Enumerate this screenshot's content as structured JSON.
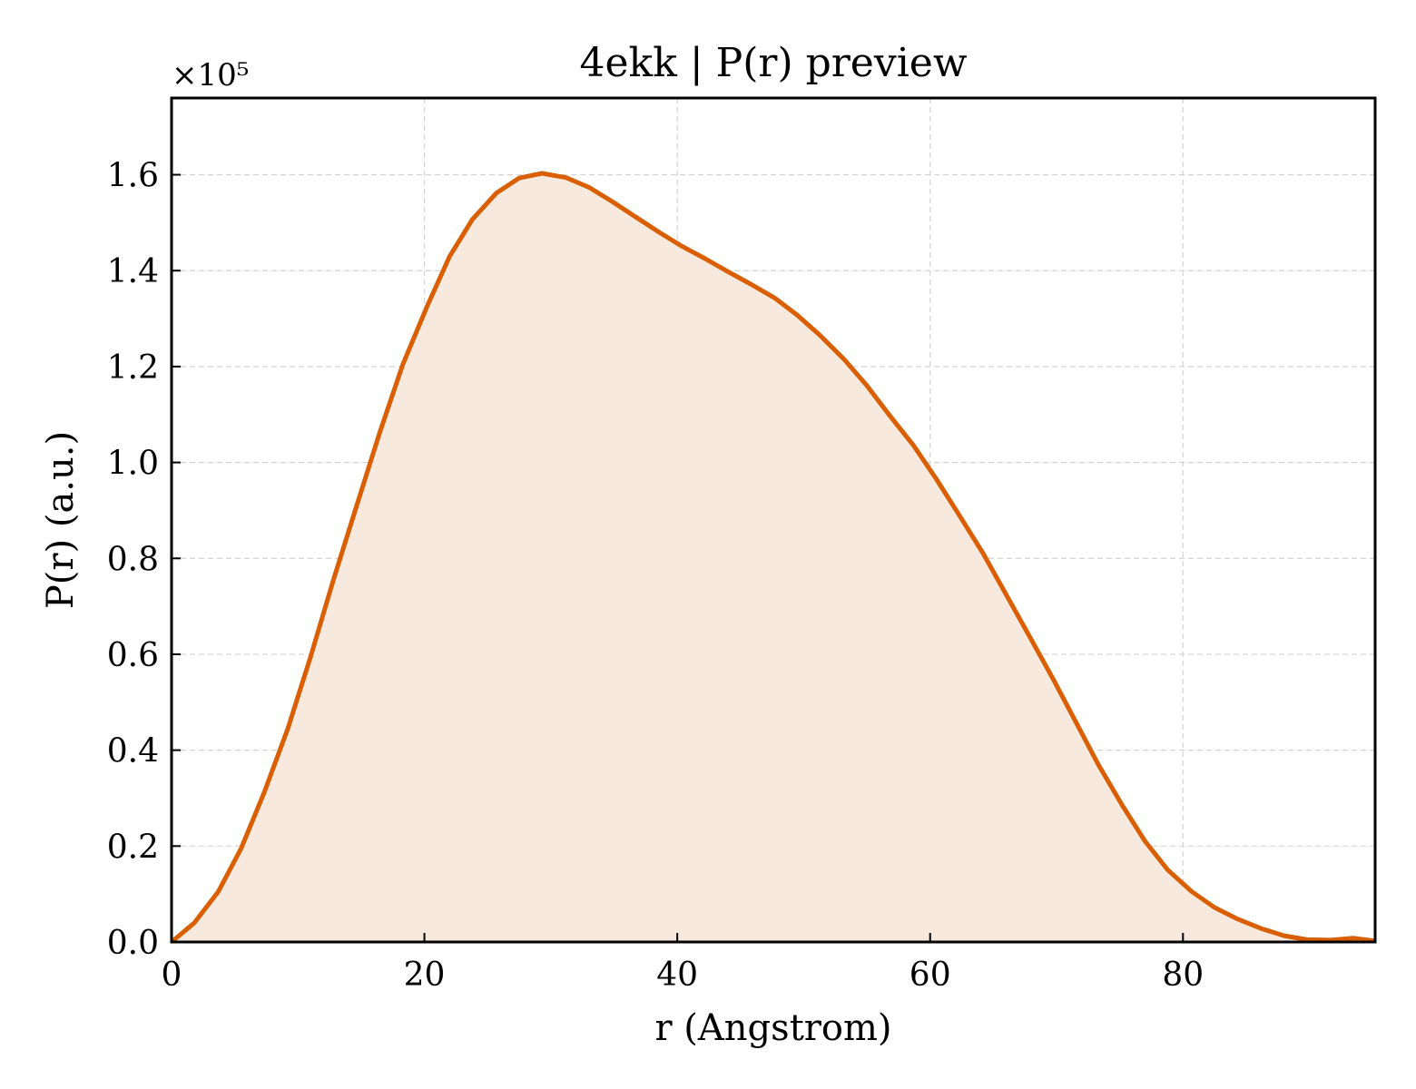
{
  "chart_data": {
    "type": "area",
    "title": "4ekk | P(r) preview",
    "xlabel": "r (Angstrom)",
    "ylabel": "P(r) (a.u.)",
    "y_multiplier_label": "×10⁵",
    "y_multiplier": 100000,
    "xlim": [
      0,
      95.2
    ],
    "ylim": [
      0,
      1.76
    ],
    "x_ticks": [
      0,
      20,
      40,
      60,
      80
    ],
    "x_tick_labels": [
      "0",
      "20",
      "40",
      "60",
      "80"
    ],
    "y_ticks": [
      0,
      0.2,
      0.4,
      0.6,
      0.8,
      1.0,
      1.2,
      1.4,
      1.6
    ],
    "y_tick_labels": [
      "0.0",
      "0.2",
      "0.4",
      "0.6",
      "0.8",
      "1.0",
      "1.2",
      "1.4",
      "1.6"
    ],
    "grid": true,
    "line_color": "#d95f02",
    "fill_color": "#f8e9de",
    "series": [
      {
        "x": [
          0,
          1.8,
          3.7,
          5.5,
          7.3,
          9.2,
          11.0,
          12.8,
          14.7,
          16.5,
          18.3,
          20.2,
          22.0,
          23.8,
          25.7,
          27.5,
          29.3,
          31.2,
          33.0,
          34.8,
          36.7,
          38.5,
          40.3,
          42.2,
          44.0,
          45.8,
          47.7,
          49.5,
          51.3,
          53.2,
          55.0,
          56.8,
          58.7,
          60.5,
          62.3,
          64.2,
          66.0,
          67.8,
          69.7,
          71.5,
          73.3,
          75.2,
          77.0,
          78.8,
          80.7,
          82.5,
          84.3,
          86.2,
          88.0,
          89.8,
          91.7,
          93.5,
          95.2
        ],
        "y": [
          0.0,
          0.04,
          0.105,
          0.195,
          0.31,
          0.445,
          0.595,
          0.755,
          0.915,
          1.065,
          1.205,
          1.325,
          1.43,
          1.507,
          1.562,
          1.593,
          1.603,
          1.594,
          1.574,
          1.545,
          1.512,
          1.481,
          1.452,
          1.425,
          1.398,
          1.372,
          1.343,
          1.307,
          1.265,
          1.215,
          1.16,
          1.098,
          1.035,
          0.965,
          0.89,
          0.81,
          0.725,
          0.64,
          0.55,
          0.46,
          0.37,
          0.285,
          0.21,
          0.15,
          0.105,
          0.072,
          0.048,
          0.028,
          0.013,
          0.005,
          0.004,
          0.008,
          0.002
        ]
      }
    ]
  }
}
